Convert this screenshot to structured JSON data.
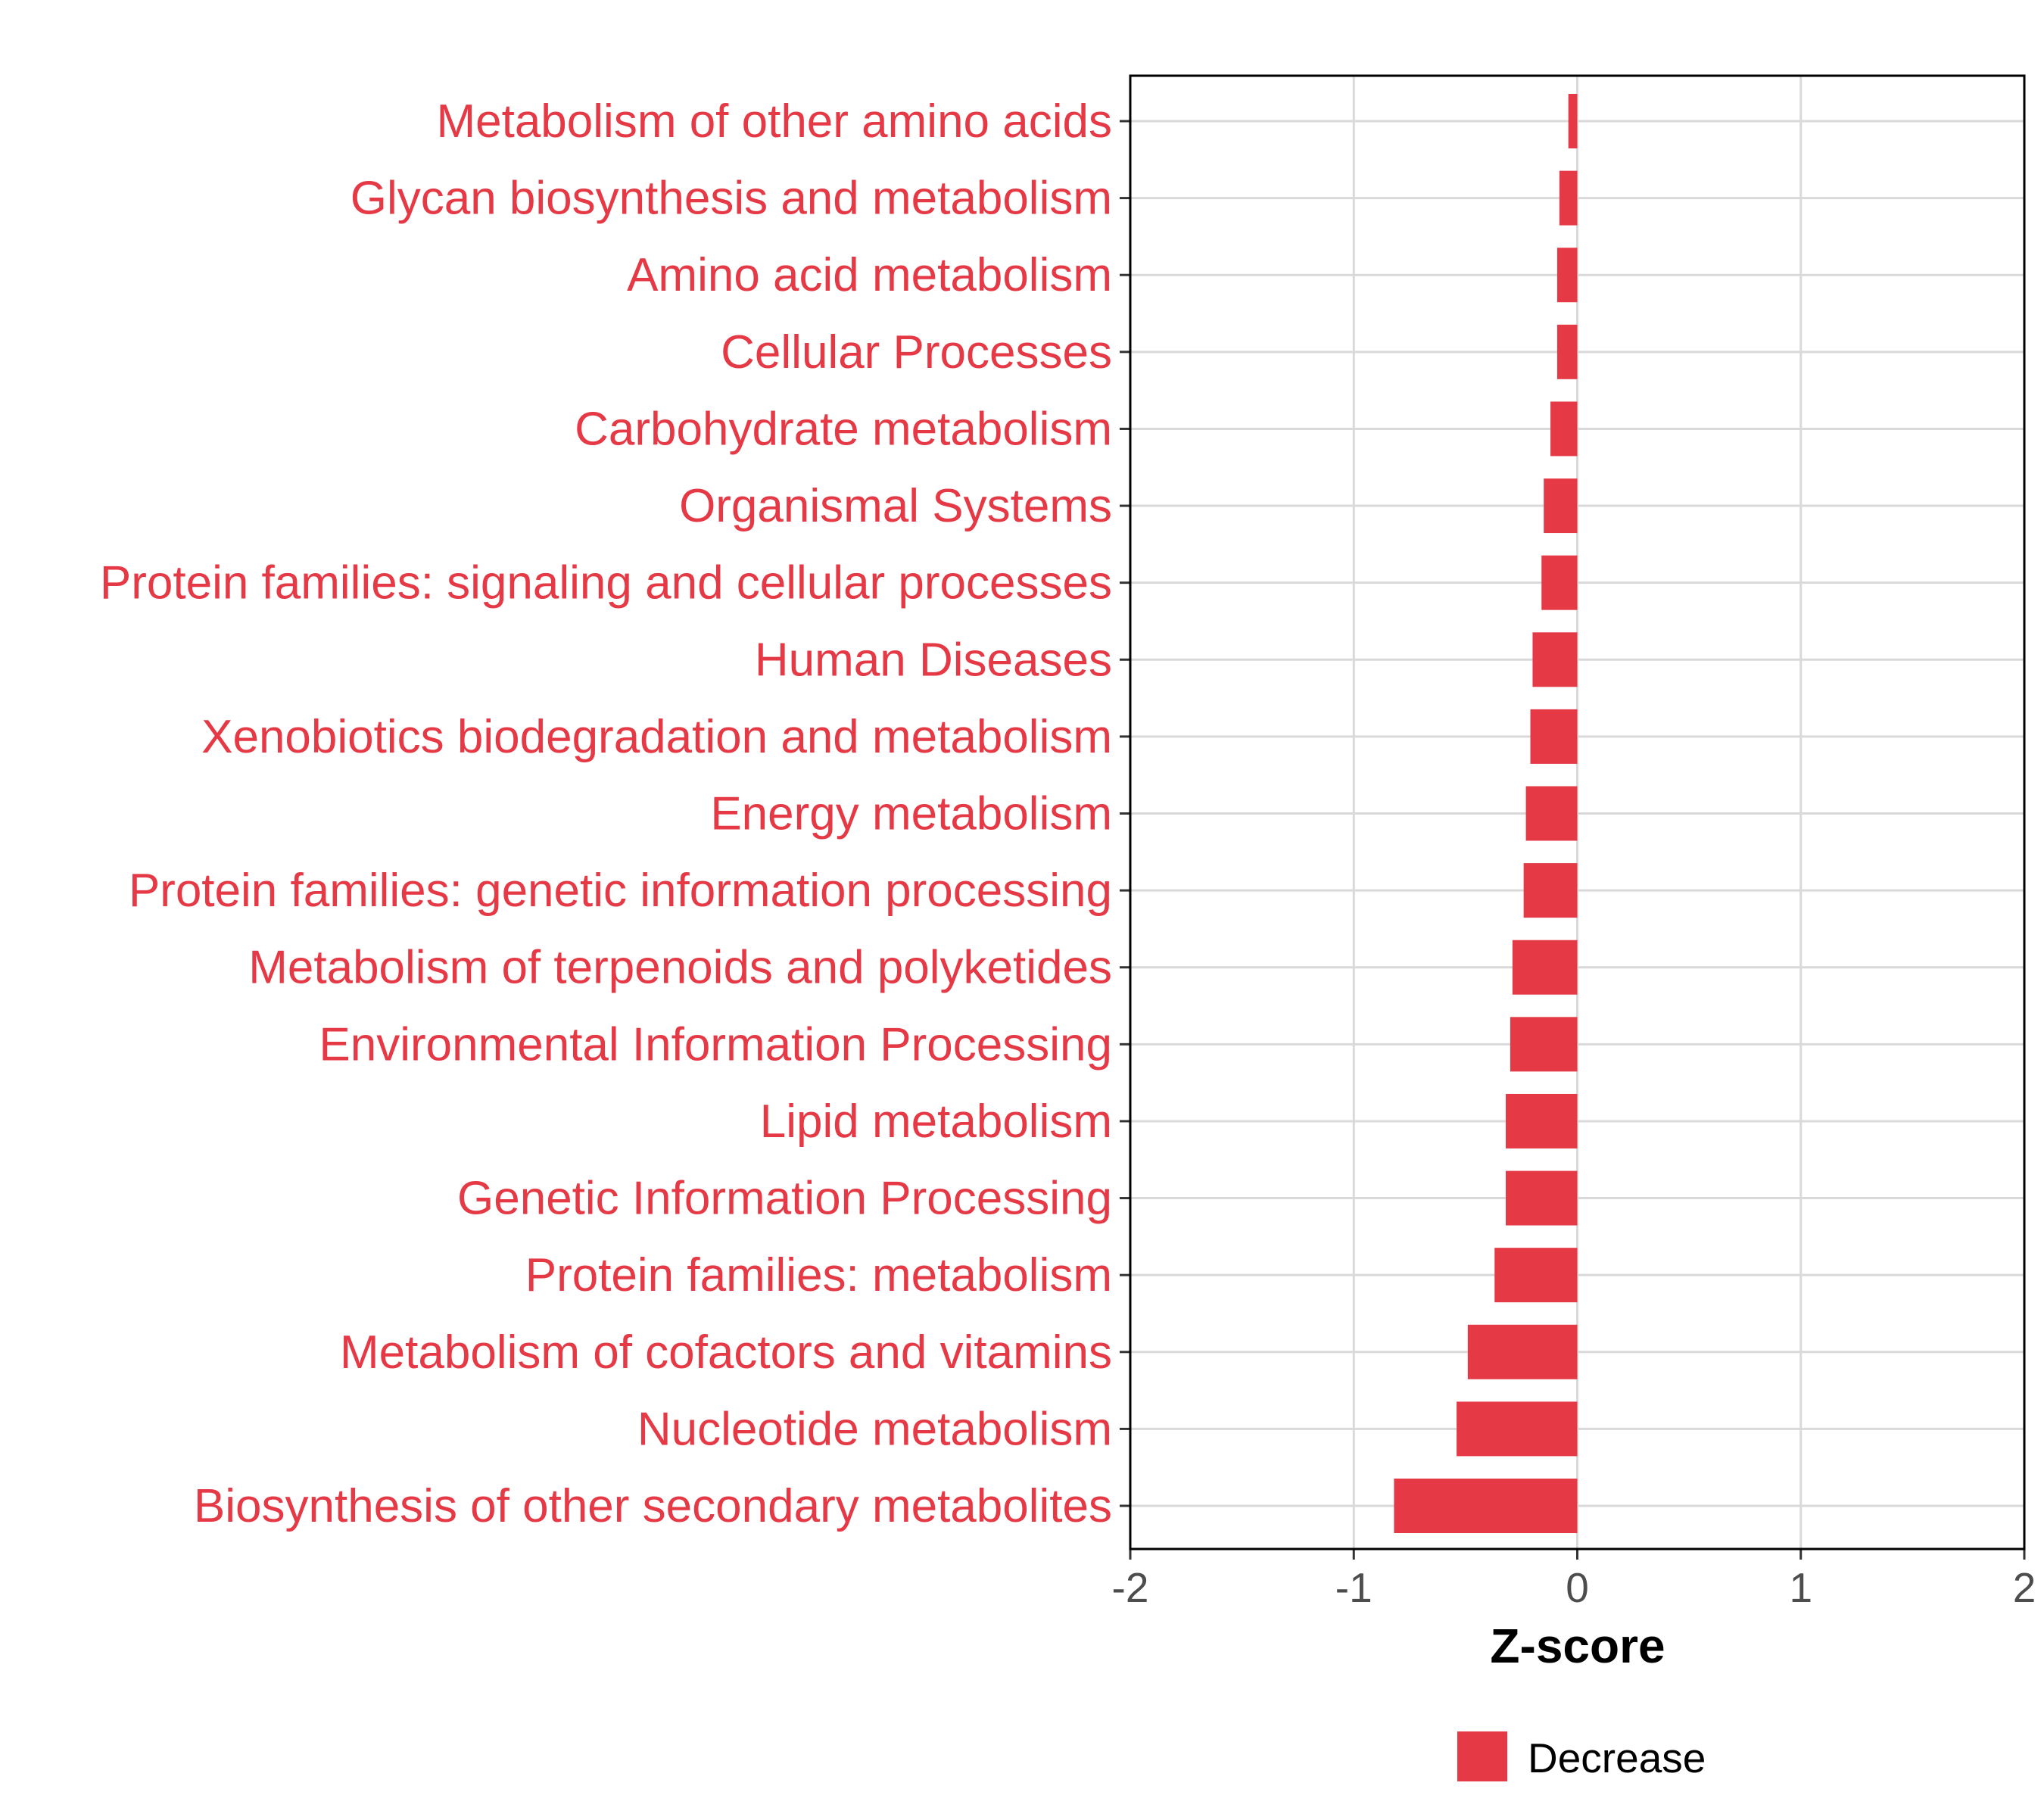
{
  "chart_data": {
    "type": "bar",
    "orientation": "horizontal",
    "title": "",
    "xlabel": "Z-score",
    "ylabel": "",
    "xlim": [
      -2,
      2
    ],
    "xticks": [
      -2,
      -1,
      0,
      1,
      2
    ],
    "xtick_labels": [
      "-2",
      "-1",
      "0",
      "1",
      "2"
    ],
    "grid": true,
    "legend": {
      "position": "bottom",
      "entries": [
        {
          "label": "Decrease",
          "color": "#E63946"
        }
      ]
    },
    "categories": [
      "Metabolism of other amino acids",
      "Glycan biosynthesis and metabolism",
      "Amino acid metabolism",
      "Cellular Processes",
      "Carbohydrate metabolism",
      "Organismal Systems",
      "Protein families: signaling and cellular processes",
      "Human Diseases",
      "Xenobiotics biodegradation and metabolism",
      "Energy metabolism",
      "Protein families: genetic information processing",
      "Metabolism of terpenoids and polyketides",
      "Environmental Information Processing",
      "Lipid metabolism",
      "Genetic Information Processing",
      "Protein families: metabolism",
      "Metabolism of cofactors and vitamins",
      "Nucleotide metabolism",
      "Biosynthesis of other secondary metabolites"
    ],
    "values": [
      -0.04,
      -0.08,
      -0.09,
      -0.09,
      -0.12,
      -0.15,
      -0.16,
      -0.2,
      -0.21,
      -0.23,
      -0.24,
      -0.29,
      -0.3,
      -0.32,
      -0.32,
      -0.37,
      -0.49,
      -0.54,
      -0.82
    ],
    "bar_color": "#E63946",
    "label_color": "#E63946"
  }
}
